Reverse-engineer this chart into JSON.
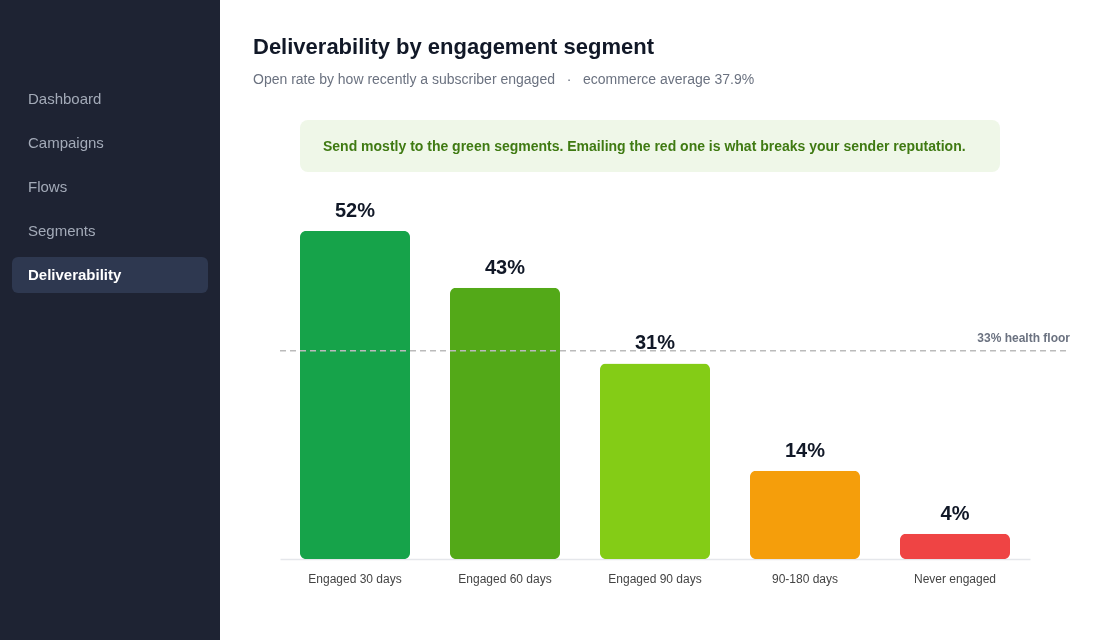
{
  "chart_data": {
    "type": "bar",
    "title": "Deliverability by engagement segment",
    "subtitle": "Open rate by how recently a subscriber engaged   ·   ecommerce average 37.9%",
    "annotations": [
      "Send mostly to the green segments. Emailing the red one is what breaks your sender reputation.",
      "Dashboard",
      "Campaigns",
      "Flows",
      "Segments",
      "Deliverability"
    ],
    "categories": [
      "Engaged 30 days",
      "Engaged 60 days",
      "Engaged 90 days",
      "90-180 days",
      "Never engaged"
    ],
    "values": [
      52,
      43,
      31,
      14,
      4
    ],
    "value_labels": [
      "52%",
      "43%",
      "31%",
      "14%",
      "4%"
    ],
    "colors": [
      "#16a34a",
      "#53a918",
      "#84cc16",
      "#f59e0b",
      "#ef4444"
    ],
    "ref_lines": [
      {
        "axis": "y",
        "value": 33,
        "label": "33% health floor",
        "color": "#bbbbbb",
        "line_style": "dashed"
      }
    ],
    "grid": false
  }
}
